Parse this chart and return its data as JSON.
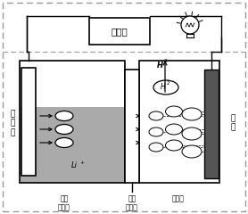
{
  "bg_color": "#ffffff",
  "border_color": "#999999",
  "line_color": "#000000",
  "text_color": "#000000",
  "gray_fill": "#aaaaaa",
  "dark_gray": "#555555",
  "collector_label": "集电器",
  "left_electrode_label": "锂电极",
  "right_electrode_label": "碳极",
  "organic_label": "有机\n电解质",
  "solid_label": "固体\n电解质",
  "aqueous_label": "水溶液",
  "li_ion_label": "Li",
  "h2_top": "H",
  "h2_top_sub": "2",
  "h2_bubble": "H",
  "h2_bubble_sub": "2"
}
